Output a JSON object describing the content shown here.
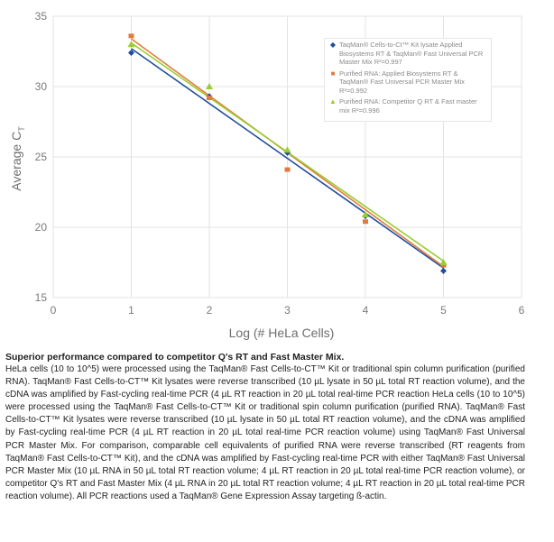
{
  "chart_data": {
    "type": "scatter",
    "title": "",
    "xlabel": "Log (# HeLa Cells)",
    "ylabel": "Average C",
    "ylabel_subscript": "T",
    "xlim": [
      0,
      6
    ],
    "ylim": [
      15,
      35
    ],
    "xticks": [
      "0",
      "1",
      "2",
      "3",
      "4",
      "5",
      "6"
    ],
    "yticks": [
      "15",
      "20",
      "25",
      "30",
      "35"
    ],
    "grid": true,
    "legend_position": "top-right",
    "series": [
      {
        "name": "TaqMan® Cells-to-Ct™ Kit lysate Applied Biosystems RT & TaqMan® Fast Universal PCR Master Mix R²=0.997",
        "marker": "diamond",
        "color": "#1f4e9c",
        "x": [
          1,
          2,
          3,
          4,
          5
        ],
        "y": [
          32.4,
          29.3,
          25.3,
          20.8,
          16.9
        ],
        "fit": [
          [
            1,
            32.7
          ],
          [
            5,
            17.1
          ]
        ]
      },
      {
        "name": "Purified RNA: Applied Biosystems RT & TaqMan® Fast Universal PCR Master Mix R²=0.992",
        "marker": "square",
        "color": "#e07b3c",
        "x": [
          1,
          2,
          3,
          4,
          5
        ],
        "y": [
          33.6,
          29.2,
          24.1,
          20.4,
          17.3
        ],
        "fit": [
          [
            1,
            33.4
          ],
          [
            5,
            17.2
          ]
        ]
      },
      {
        "name": "Purified RNA: Competitor Q RT & Fast master mix R²=0.996",
        "marker": "triangle",
        "color": "#9acd32",
        "x": [
          1,
          2,
          3,
          4,
          5
        ],
        "y": [
          33.0,
          30.0,
          25.5,
          20.9,
          17.5
        ],
        "fit": [
          [
            1,
            33.1
          ],
          [
            5,
            17.6
          ]
        ]
      }
    ]
  },
  "caption": {
    "title": "Superior performance compared to competitor Q's RT and Fast Master Mix.",
    "body": "HeLa cells (10 to 10^5) were processed using the TaqMan® Fast Cells-to-CT™ Kit or traditional spin column purification (purified RNA). TaqMan® Fast Cells-to-CT™ Kit lysates were reverse transcribed (10 µL lysate in 50 µL total RT reaction volume), and the cDNA was amplified by Fast-cycling real-time PCR (4 µL RT reaction in 20 µL total real-time PCR reaction HeLa cells (10 to 10^5) were processed using the TaqMan® Fast Cells-to-CT™ Kit or traditional spin column purification (purified RNA). TaqMan® Fast Cells-to-CT™ Kit lysates were reverse transcribed (10 µL lysate in 50 µL total RT reaction volume), and the cDNA was amplified by Fast-cycling real-time PCR (4 µL RT reaction in 20 µL total real-time PCR reaction volume) using TaqMan® Fast Universal PCR Master Mix. For comparison, comparable cell equivalents of purified RNA were reverse transcribed (RT reagents from TaqMan® Fast Cells-to-CT™ Kit), and the cDNA was amplified by Fast-cycling real-time PCR with either TaqMan® Fast Universal PCR Master Mix (10 µL RNA in 50 µL total RT reaction volume; 4 µL RT reaction in 20 µL total real-time PCR reaction volume), or competitor Q's RT and Fast Master Mix (4 µL RNA in 20 µL total RT reaction volume; 4 µL RT reaction in 20 µL total real-time PCR reaction volume). All PCR reactions used a TaqMan® Gene Expression Assay targeting ß-actin."
  }
}
